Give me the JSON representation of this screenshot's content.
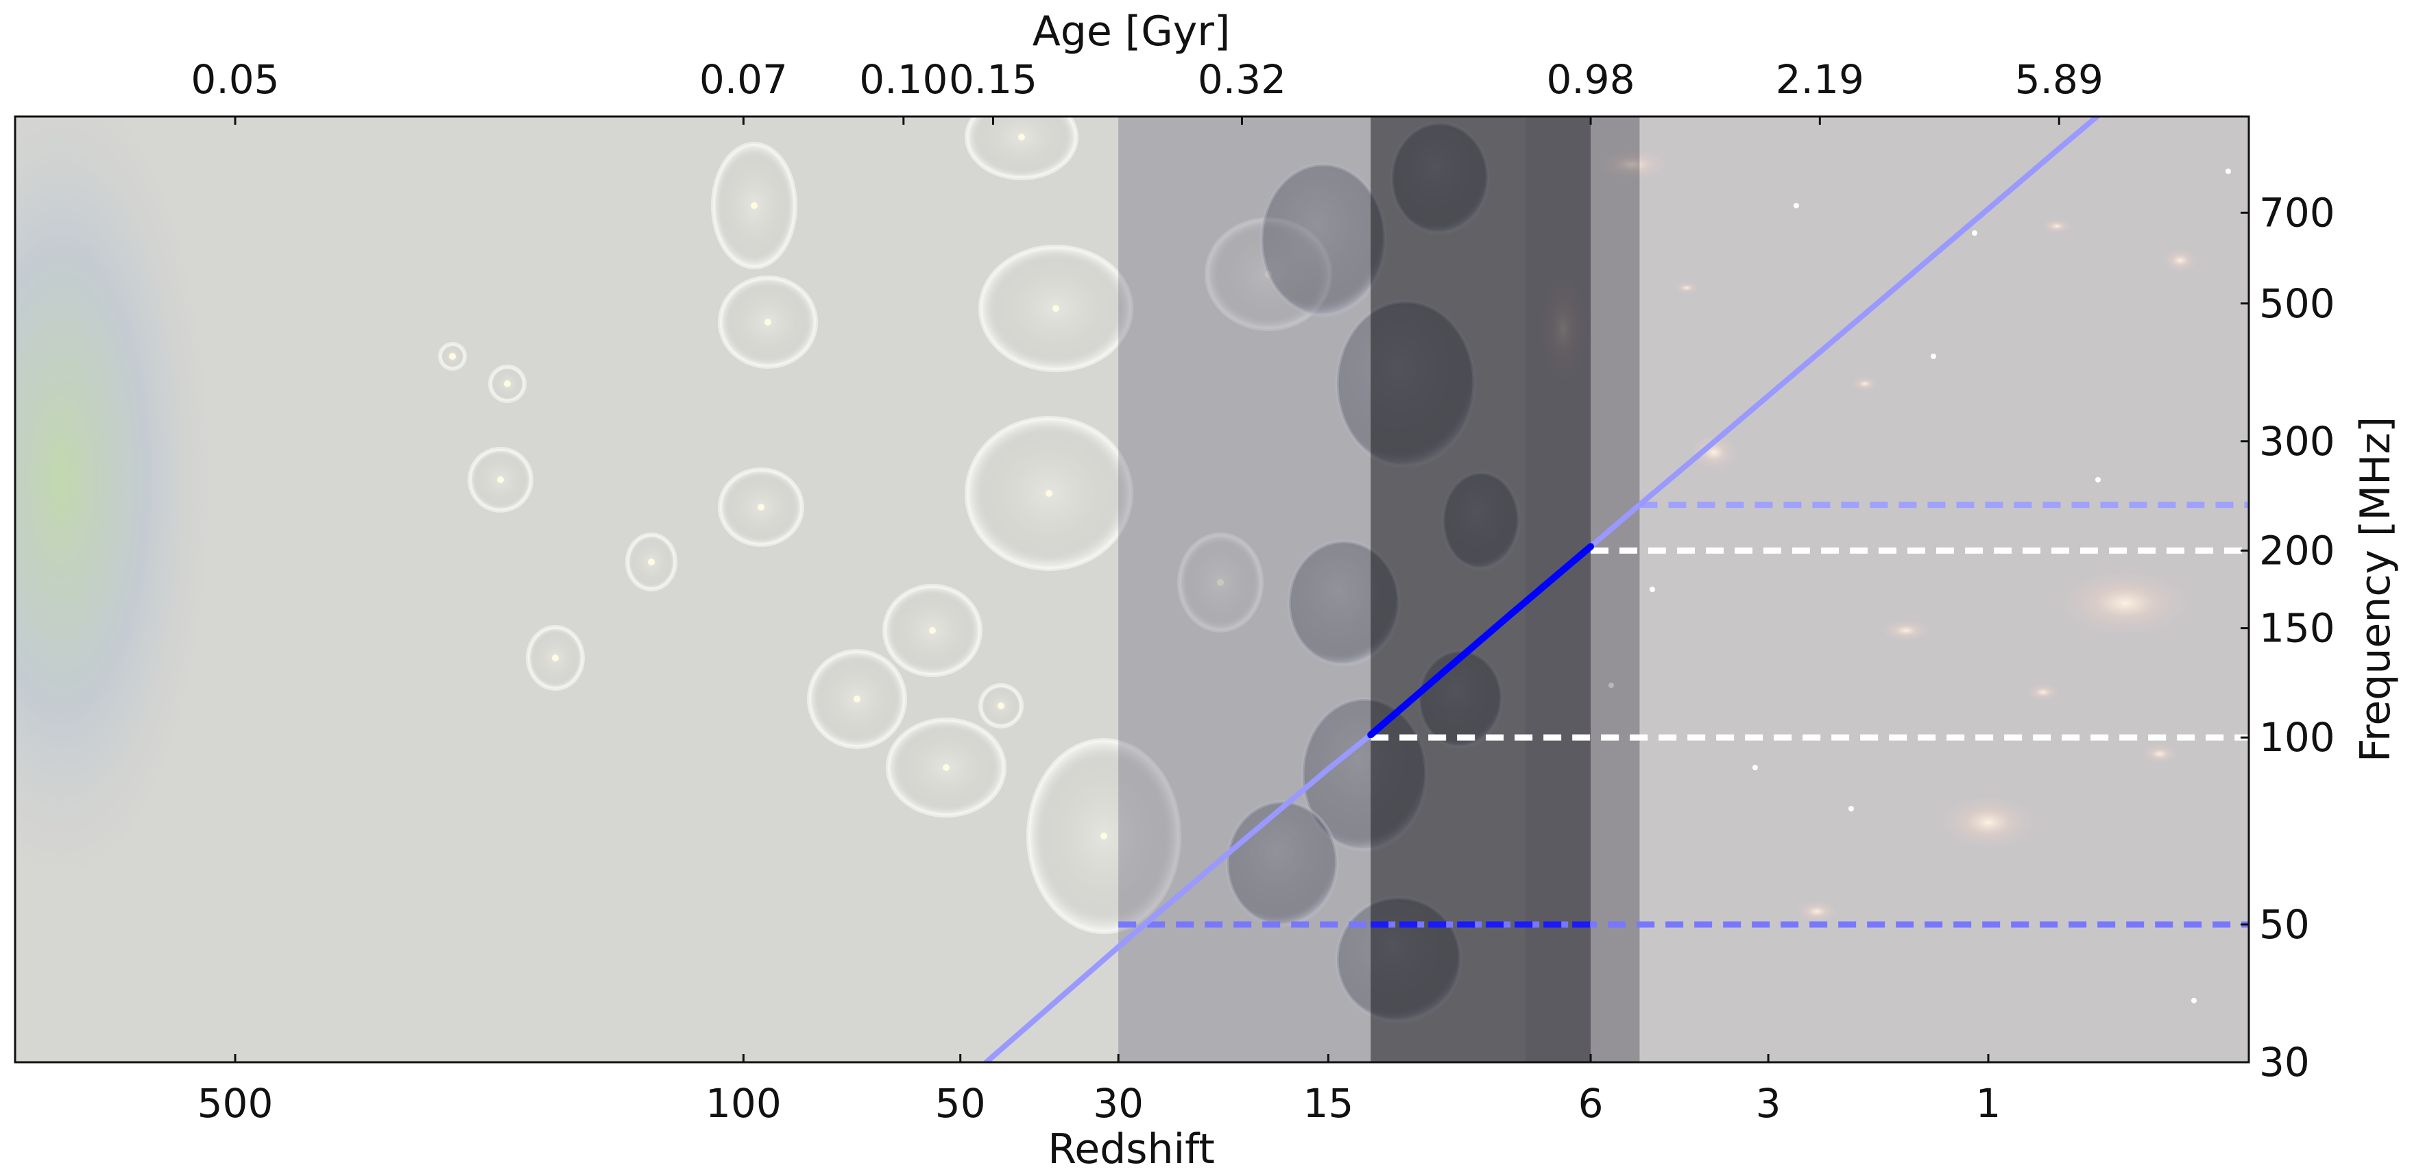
{
  "chart_data": {
    "type": "line",
    "xlabel": "Redshift",
    "x2label": "Age [Gyr]",
    "ylabel": "Frequency [MHz]",
    "x_scale": "log(1+z), reversed",
    "y_scale": "log",
    "xlim": [
      1000,
      0.2
    ],
    "ylim": [
      30,
      1000
    ],
    "x_ticks": [
      500,
      100,
      50,
      30,
      15,
      6,
      3,
      1
    ],
    "x_tick_labels": [
      "500",
      "100",
      "50",
      "30",
      "15",
      "6",
      "3",
      "1"
    ],
    "top_ticks_at_redshift": [
      500,
      100,
      60,
      45,
      20,
      6,
      2.4,
      0.6
    ],
    "top_tick_labels": [
      "0.05",
      "0.07",
      "0.10",
      "0.15",
      "0.32",
      "0.98",
      "2.19",
      "5.89"
    ],
    "y_ticks": [
      700,
      500,
      300,
      200,
      150,
      100,
      50,
      30
    ],
    "y_tick_labels": [
      "700",
      "500",
      "300",
      "200",
      "150",
      "100",
      "50",
      "30"
    ],
    "series": [
      {
        "curve": "nu = 1420.4 / (1 + z)",
        "color": "#9999ff",
        "x": [
          46,
          30,
          20,
          15,
          13,
          10,
          8,
          6,
          5,
          4,
          3,
          2,
          1,
          0.6,
          0.42
        ],
        "y": [
          30,
          46,
          68,
          89,
          101,
          129,
          158,
          203,
          237,
          284,
          355,
          473,
          710,
          888,
          1000
        ]
      },
      {
        "curve": "highlighted segment",
        "color": "#0000ff",
        "x": [
          13,
          10,
          8,
          6
        ],
        "y": [
          101,
          129,
          158,
          203
        ]
      }
    ],
    "reference_lines": [
      {
        "y": 237,
        "from_z": 5,
        "color": "#a0a0ff",
        "style": "dashed"
      },
      {
        "y": 200,
        "from_z": 6,
        "color": "#ffffff",
        "style": "dashed"
      },
      {
        "y": 100,
        "from_z": 13,
        "color": "#ffffff",
        "style": "dashed"
      },
      {
        "y": 50,
        "from_z": 30,
        "color": "#7777ff",
        "style": "dashed"
      },
      {
        "y": 50,
        "from_z": 13,
        "to_z": 6,
        "color": "#1a1aff",
        "style": "dashed"
      }
    ],
    "shaded_bands": [
      {
        "z_from": 30,
        "z_to": 13,
        "color": "#4e4e68",
        "opacity": 0.3
      },
      {
        "z_from": 13,
        "z_to": 6,
        "color": "#14141e",
        "opacity": 0.6
      },
      {
        "z_from": 6,
        "z_to": 5,
        "color": "#32323c",
        "opacity": 0.35
      }
    ],
    "background_eras": [
      "cosmic-microwave-background",
      "first-stars-bubbles",
      "reionization",
      "galaxies"
    ],
    "grid": false,
    "legend": "none"
  }
}
